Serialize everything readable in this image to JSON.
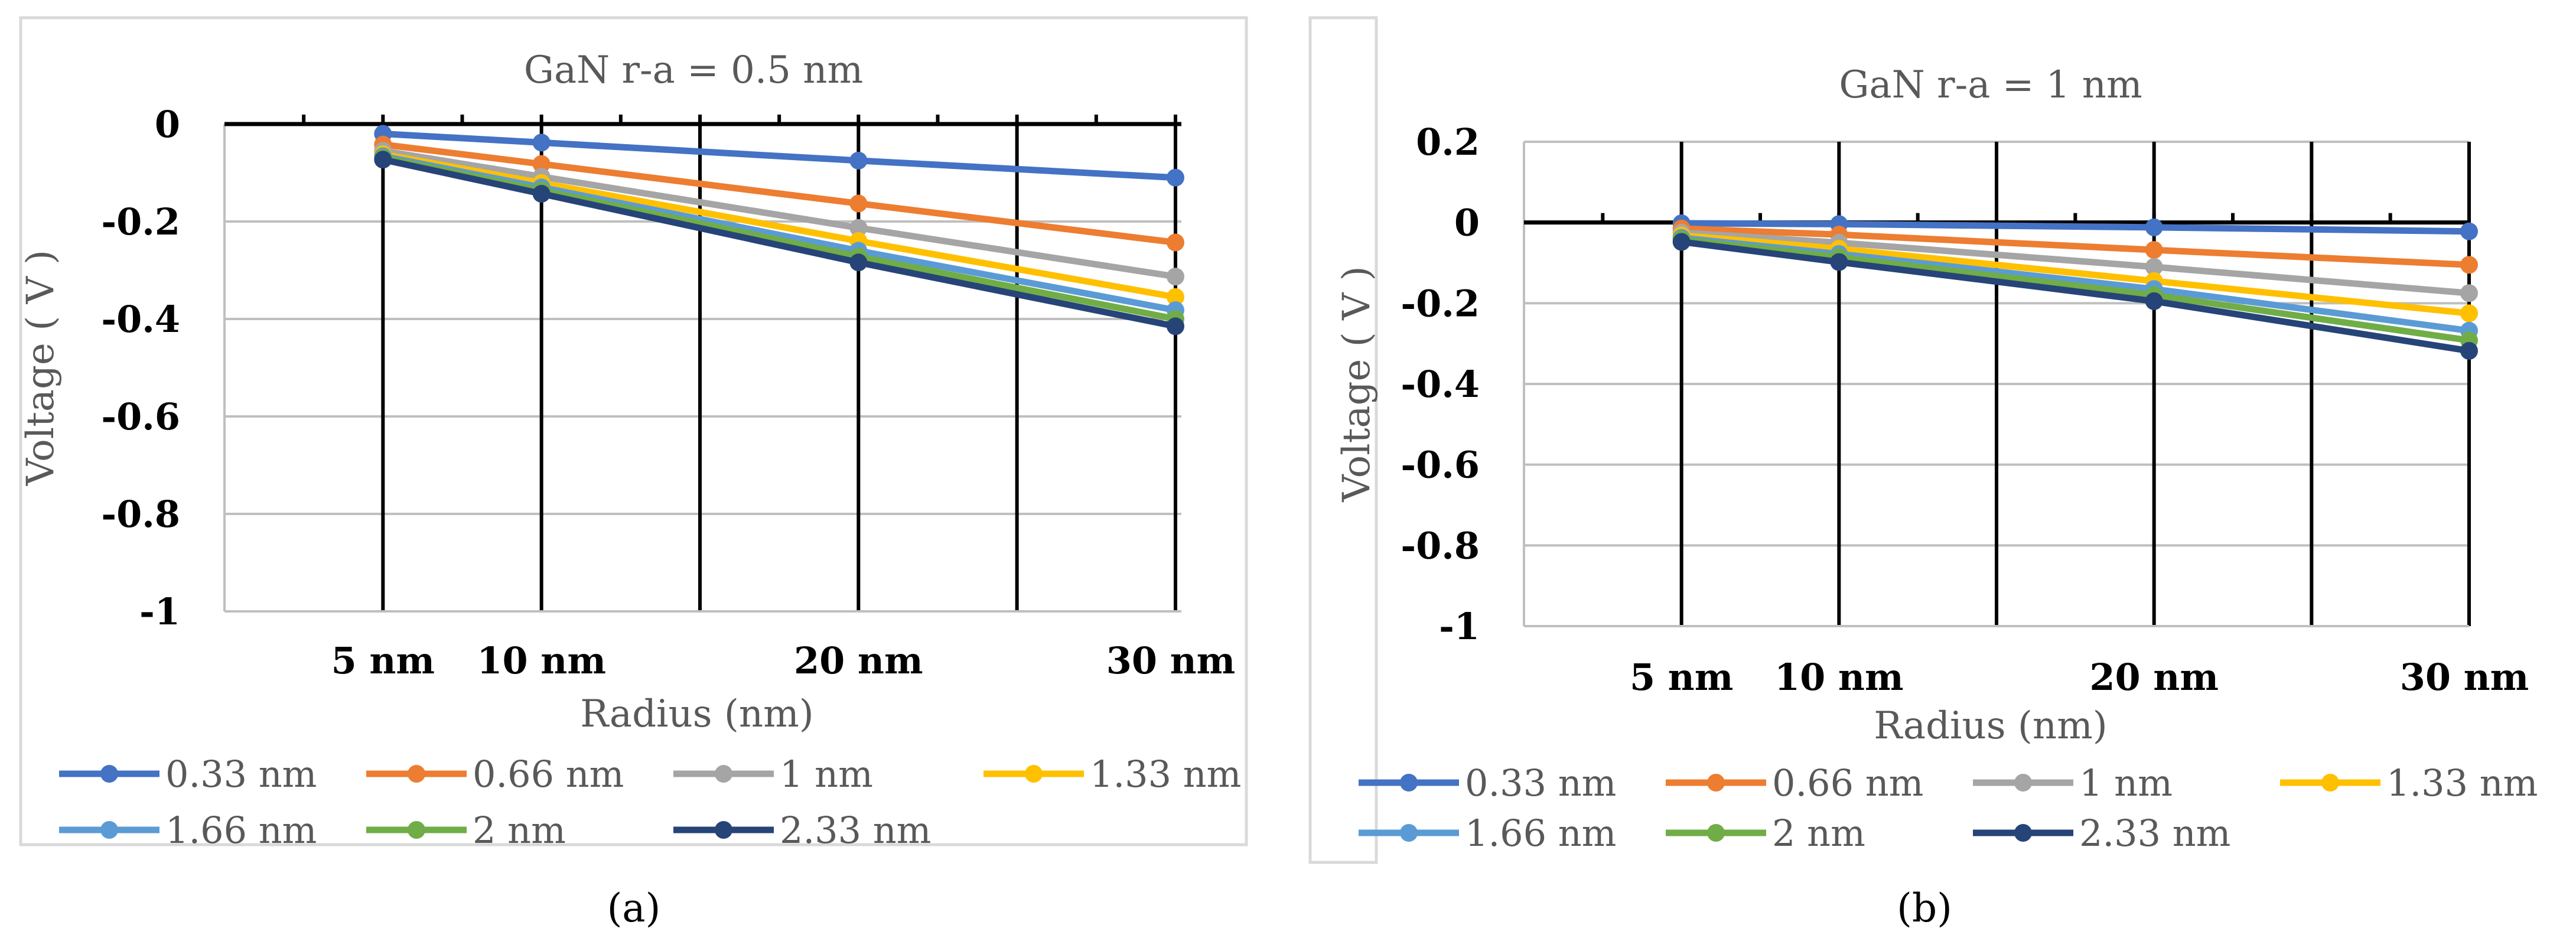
{
  "chart_data": [
    {
      "panel_label": "(a)",
      "type": "line",
      "title": "GaN r-a =  0.5 nm",
      "xlabel": "Radius (nm)",
      "ylabel": "Voltage ( V )",
      "ylim": [
        -1,
        0
      ],
      "yticks": [
        0,
        -0.2,
        -0.4,
        -0.6,
        -0.8,
        -1
      ],
      "ytick_labels": [
        "0",
        "-0.2",
        "-0.4",
        "-0.6",
        "-0.8",
        "-1"
      ],
      "x": [
        5,
        10,
        20,
        30
      ],
      "xtick_labels": [
        "5 nm",
        "10 nm",
        "20 nm",
        "30 nm"
      ],
      "grid": true,
      "legend_position": "bottom",
      "series": [
        {
          "name": "0.33 nm",
          "color": "#4472C4",
          "values": [
            -0.02,
            -0.038,
            -0.075,
            -0.11
          ]
        },
        {
          "name": "0.66 nm",
          "color": "#ED7D31",
          "values": [
            -0.042,
            -0.082,
            -0.163,
            -0.243
          ]
        },
        {
          "name": "1 nm",
          "color": "#A5A5A5",
          "values": [
            -0.055,
            -0.108,
            -0.213,
            -0.313
          ]
        },
        {
          "name": "1.33 nm",
          "color": "#FFC000",
          "values": [
            -0.062,
            -0.121,
            -0.24,
            -0.355
          ]
        },
        {
          "name": "1.66 nm",
          "color": "#5B9BD5",
          "values": [
            -0.066,
            -0.13,
            -0.26,
            -0.382
          ]
        },
        {
          "name": "2 nm",
          "color": "#70AD47",
          "values": [
            -0.069,
            -0.136,
            -0.272,
            -0.4
          ]
        },
        {
          "name": "2.33 nm",
          "color": "#264478",
          "values": [
            -0.073,
            -0.143,
            -0.284,
            -0.415
          ]
        }
      ]
    },
    {
      "panel_label": "(b)",
      "type": "line",
      "title": "GaN r-a =  1 nm",
      "xlabel": "Radius (nm)",
      "ylabel": "Voltage ( V )",
      "ylim": [
        -1,
        0.2
      ],
      "yticks": [
        0.2,
        0,
        -0.2,
        -0.4,
        -0.6,
        -0.8,
        -1
      ],
      "ytick_labels": [
        "0.2",
        "0",
        "-0.2",
        "-0.4",
        "-0.6",
        "-0.8",
        "-1"
      ],
      "x": [
        5,
        10,
        20,
        30
      ],
      "xtick_labels": [
        "5 nm",
        "10 nm",
        "20 nm",
        "30 nm"
      ],
      "grid": true,
      "legend_position": "bottom",
      "series": [
        {
          "name": "0.33 nm",
          "color": "#4472C4",
          "values": [
            -0.002,
            -0.004,
            -0.012,
            -0.022
          ]
        },
        {
          "name": "0.66 nm",
          "color": "#ED7D31",
          "values": [
            -0.015,
            -0.03,
            -0.068,
            -0.105
          ]
        },
        {
          "name": "1 nm",
          "color": "#A5A5A5",
          "values": [
            -0.025,
            -0.05,
            -0.11,
            -0.175
          ]
        },
        {
          "name": "1.33 nm",
          "color": "#FFC000",
          "values": [
            -0.032,
            -0.065,
            -0.145,
            -0.225
          ]
        },
        {
          "name": "1.66 nm",
          "color": "#5B9BD5",
          "values": [
            -0.038,
            -0.078,
            -0.165,
            -0.268
          ]
        },
        {
          "name": "2 nm",
          "color": "#70AD47",
          "values": [
            -0.042,
            -0.086,
            -0.18,
            -0.292
          ]
        },
        {
          "name": "2.33 nm",
          "color": "#264478",
          "values": [
            -0.048,
            -0.098,
            -0.195,
            -0.318
          ]
        }
      ]
    }
  ]
}
